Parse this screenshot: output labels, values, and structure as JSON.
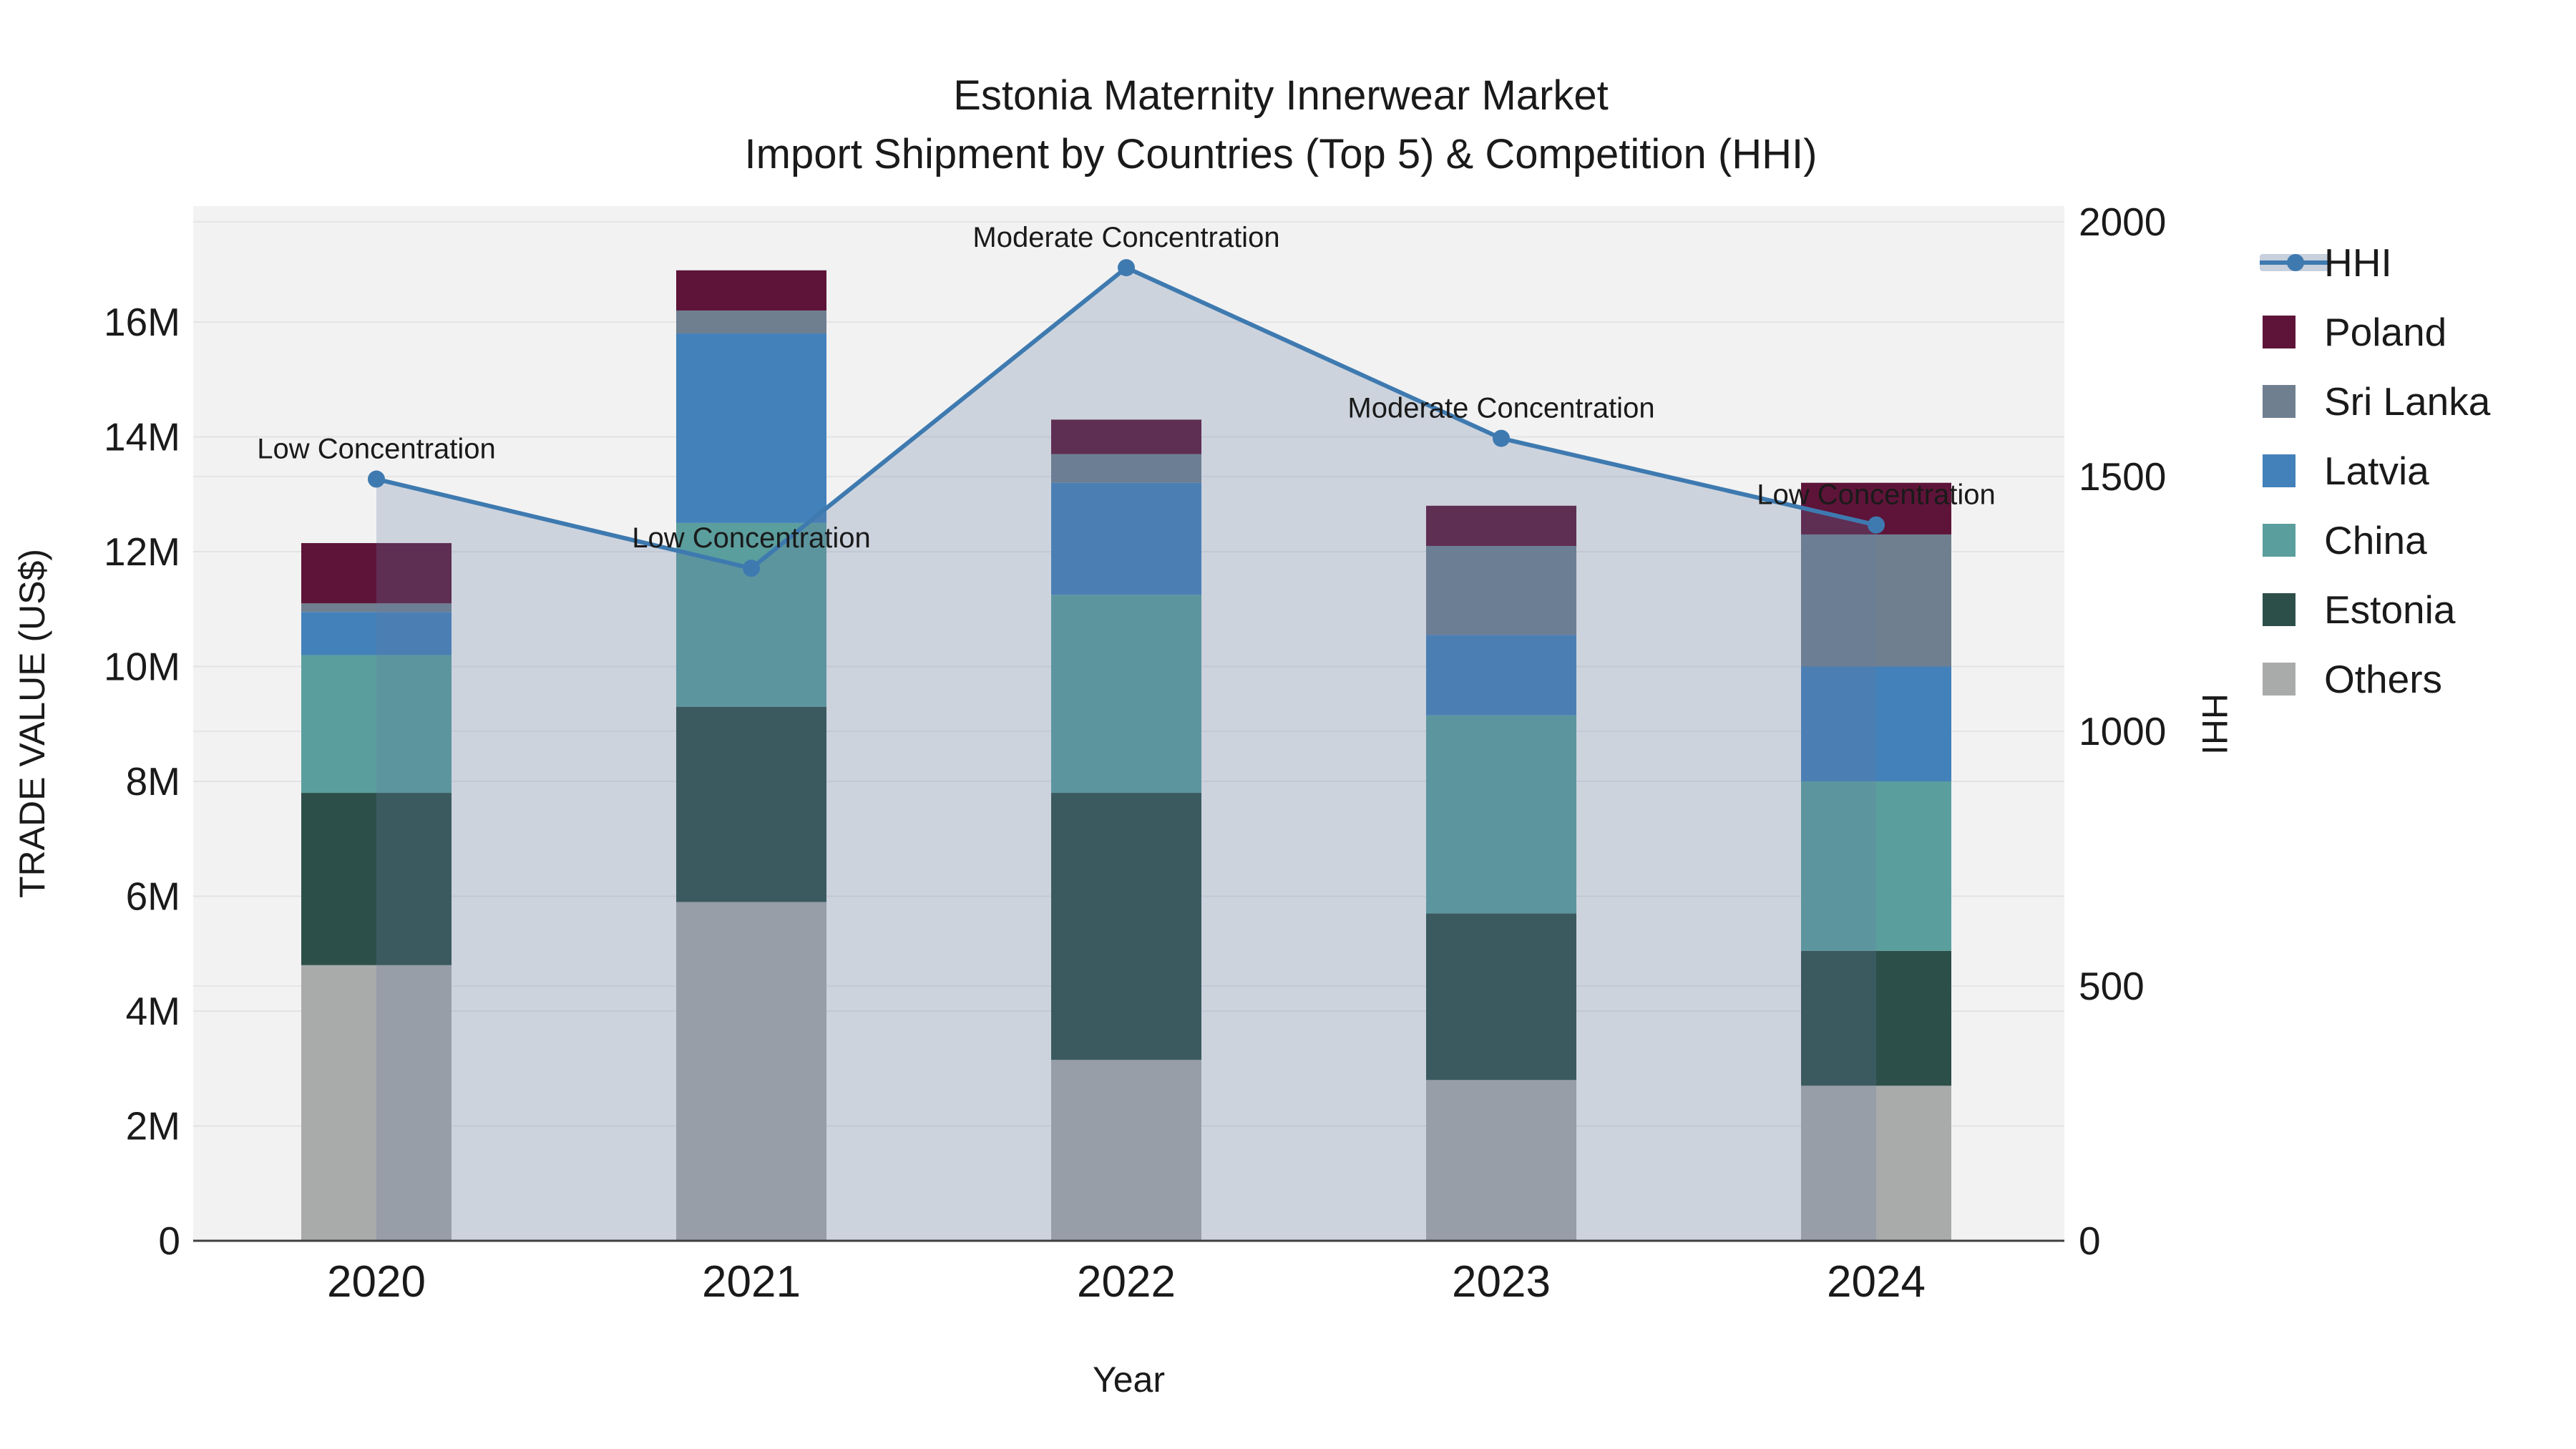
{
  "title": {
    "line1": "Estonia Maternity Innerwear Market",
    "line2": "Import Shipment by Countries (Top 5) & Competition (HHI)"
  },
  "chart_data": {
    "type": "combo",
    "subtypes": [
      "stacked-bar",
      "line",
      "area"
    ],
    "title": "Estonia Maternity Innerwear Market Import Shipment by Countries (Top 5) & Competition (HHI)",
    "xlabel": "Year",
    "ylabel_left": "TRADE VALUE (US$)",
    "ylabel_right": "HHI",
    "categories": [
      "2020",
      "2021",
      "2022",
      "2023",
      "2024"
    ],
    "units": "left axis in millions of US$, right axis HHI index points",
    "stack_order_bottom_to_top": [
      "Others",
      "Estonia",
      "China",
      "Latvia",
      "Sri Lanka",
      "Poland"
    ],
    "series": [
      {
        "name": "Others",
        "color": "#A9ABAB",
        "values": [
          4.8,
          5.9,
          3.15,
          2.8,
          2.7
        ]
      },
      {
        "name": "Estonia",
        "color": "#2D4F4A",
        "values": [
          3.0,
          3.4,
          4.65,
          2.9,
          2.35
        ]
      },
      {
        "name": "China",
        "color": "#5B9E9E",
        "values": [
          2.4,
          3.2,
          3.45,
          3.45,
          2.95
        ]
      },
      {
        "name": "Latvia",
        "color": "#4381BA",
        "values": [
          0.75,
          3.3,
          1.95,
          1.4,
          2.0
        ]
      },
      {
        "name": "Sri Lanka",
        "color": "#6F7F90",
        "values": [
          0.15,
          0.4,
          0.5,
          1.55,
          2.3
        ]
      },
      {
        "name": "Poland",
        "color": "#5E1438",
        "values": [
          1.05,
          0.7,
          0.6,
          0.7,
          0.9
        ]
      }
    ],
    "bar_totals": [
      12.15,
      16.9,
      14.3,
      12.8,
      13.2
    ],
    "hhi": {
      "name": "HHI",
      "line_color": "#3E7AB0",
      "area_fill": "rgba(100,123,162,0.26)",
      "values": [
        1495,
        1320,
        1910,
        1575,
        1405
      ]
    },
    "annotations": [
      {
        "category": "2020",
        "text": "Low Concentration"
      },
      {
        "category": "2021",
        "text": "Low Concentration"
      },
      {
        "category": "2022",
        "text": "Moderate Concentration"
      },
      {
        "category": "2023",
        "text": "Moderate Concentration"
      },
      {
        "category": "2024",
        "text": "Low Concentration"
      }
    ],
    "left_axis": {
      "min": 0,
      "max": 16,
      "ticks": [
        {
          "value": 0,
          "label": "0"
        },
        {
          "value": 2,
          "label": "2M"
        },
        {
          "value": 4,
          "label": "4M"
        },
        {
          "value": 6,
          "label": "6M"
        },
        {
          "value": 8,
          "label": "8M"
        },
        {
          "value": 10,
          "label": "10M"
        },
        {
          "value": 12,
          "label": "12M"
        },
        {
          "value": 14,
          "label": "14M"
        },
        {
          "value": 16,
          "label": "16M"
        }
      ]
    },
    "right_axis": {
      "min": 0,
      "max": 2000,
      "ticks": [
        {
          "value": 0,
          "label": "0"
        },
        {
          "value": 500,
          "label": "500"
        },
        {
          "value": 1000,
          "label": "1000"
        },
        {
          "value": 1500,
          "label": "1500"
        },
        {
          "value": 2000,
          "label": "2000"
        }
      ]
    },
    "grid": "horizontal gridlines for both axes, light gray on light plot background",
    "legend": {
      "position": "right, top-aligned",
      "items": [
        {
          "label": "HHI",
          "swatch": "line-marker"
        },
        {
          "label": "Poland",
          "swatch": "square"
        },
        {
          "label": "Sri Lanka",
          "swatch": "square"
        },
        {
          "label": "Latvia",
          "swatch": "square"
        },
        {
          "label": "China",
          "swatch": "square"
        },
        {
          "label": "Estonia",
          "swatch": "square"
        },
        {
          "label": "Others",
          "swatch": "square"
        }
      ]
    },
    "colors": {
      "plot_background": "#F2F2F2",
      "gridline": "#E3E3E6",
      "axis_line": "#3F3F3F",
      "text": "#1A1A1A"
    }
  }
}
